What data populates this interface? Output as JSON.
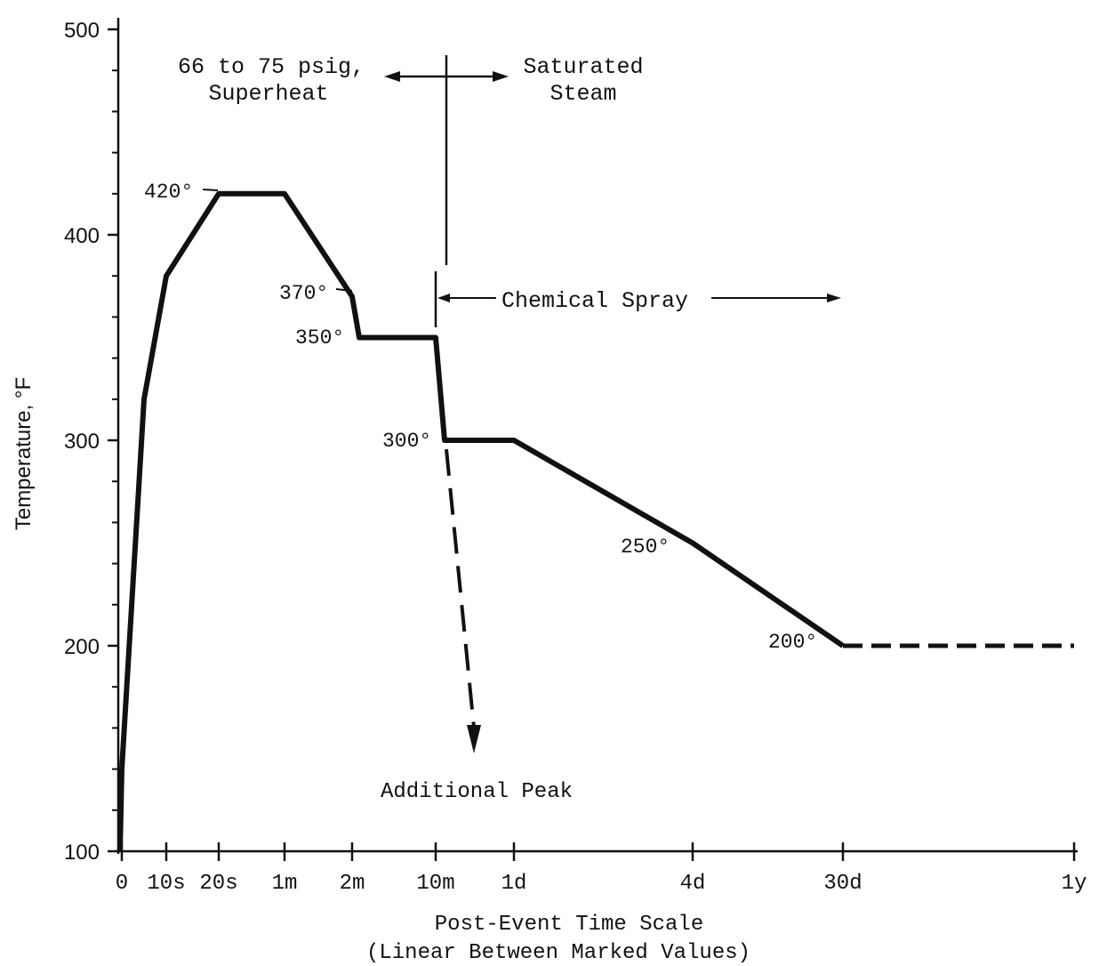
{
  "chart_data": {
    "type": "line",
    "xlabel": "Post-Event Time Scale",
    "xlabel_note": "(Linear Between Marked Values)",
    "ylabel": "Temperature, °F",
    "ylim": [
      100,
      500
    ],
    "y_ticks": [
      100,
      200,
      300,
      400,
      500
    ],
    "x_ticks": [
      "0",
      "10s",
      "20s",
      "1m",
      "2m",
      "10m",
      "1d",
      "4d",
      "30d",
      "1y"
    ],
    "x_scale": "piecewise linear between marked values",
    "series": [
      {
        "style": "solid",
        "points": [
          {
            "x": "0",
            "y": 100
          },
          {
            "x": "0",
            "y": 140
          },
          {
            "x": "5s",
            "y": 320
          },
          {
            "x": "10s",
            "y": 380
          },
          {
            "x": "20s",
            "y": 420
          },
          {
            "x": "1m",
            "y": 420
          },
          {
            "x": "2m",
            "y": 370
          },
          {
            "x": "2m",
            "y": 350
          },
          {
            "x": "10m",
            "y": 350
          },
          {
            "x": "10m",
            "y": 300
          },
          {
            "x": "1d",
            "y": 300
          },
          {
            "x": "4d",
            "y": 250
          },
          {
            "x": "30d",
            "y": 200
          }
        ]
      },
      {
        "style": "dashed",
        "points": [
          {
            "x": "30d",
            "y": 200
          },
          {
            "x": "1y",
            "y": 200
          }
        ]
      },
      {
        "style": "dashed-arrow",
        "points": [
          {
            "x": "10m",
            "y": 300
          },
          {
            "x": "10m+",
            "y": 145
          }
        ]
      }
    ],
    "point_labels": [
      "420°",
      "370°",
      "350°",
      "300°",
      "250°",
      "200°"
    ],
    "annotations": {
      "superheat_line1": "66 to 75 psig,",
      "superheat_line2": "Superheat",
      "saturated_line1": "Saturated",
      "saturated_line2": "Steam",
      "spray": "Chemical Spray",
      "additional_peak": "Additional Peak"
    }
  }
}
